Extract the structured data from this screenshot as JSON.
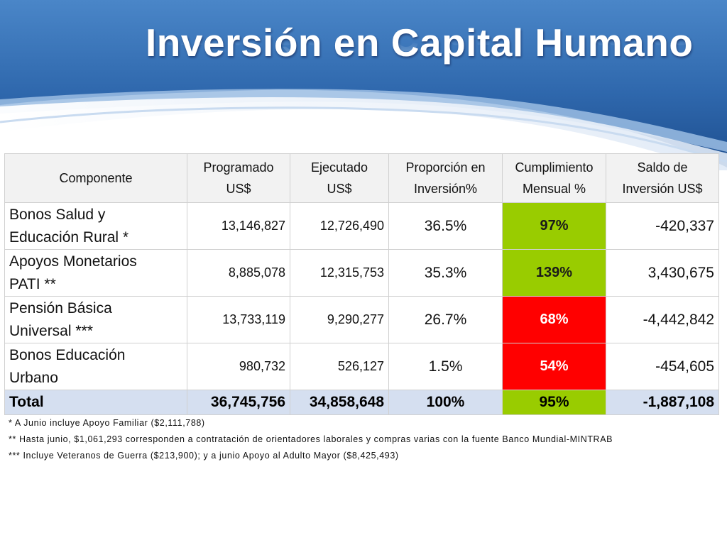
{
  "slide": {
    "title": "Inversión en Capital Humano"
  },
  "table": {
    "headers": {
      "componente": "Componente",
      "programado": [
        "Programado",
        "US$"
      ],
      "ejecutado": [
        "Ejecutado",
        "US$"
      ],
      "proporcion": [
        "Proporción en",
        "Inversión%"
      ],
      "cumplimiento": [
        "Cumplimiento",
        "Mensual %"
      ],
      "saldo": [
        "Saldo de",
        "Inversión US$"
      ]
    },
    "rows": [
      {
        "componente": [
          "Bonos Salud y",
          "Educación Rural *"
        ],
        "programado": "13,146,827",
        "ejecutado": "12,726,490",
        "proporcion": "36.5%",
        "cumplimiento": "97%",
        "saldo": "-420,337"
      },
      {
        "componente": [
          "Apoyos Monetarios",
          "PATI **"
        ],
        "programado": "8,885,078",
        "ejecutado": "12,315,753",
        "proporcion": "35.3%",
        "cumplimiento": "139%",
        "saldo": "3,430,675"
      },
      {
        "componente": [
          "Pensión Básica",
          "Universal ***"
        ],
        "programado": "13,733,119",
        "ejecutado": "9,290,277",
        "proporcion": "26.7%",
        "cumplimiento": "68%",
        "saldo": "-4,442,842"
      },
      {
        "componente": [
          "Bonos Educación",
          "Urbano"
        ],
        "programado": "980,732",
        "ejecutado": "526,127",
        "proporcion": "1.5%",
        "cumplimiento": "54%",
        "saldo": "-454,605"
      }
    ],
    "total": {
      "label": "Total",
      "programado": "36,745,756",
      "ejecutado": "34,858,648",
      "proporcion": "100%",
      "cumplimiento": "95%",
      "saldo": "-1,887,108"
    }
  },
  "notes": [
    "* A Junio incluye Apoyo Familiar ($2,111,788)",
    "** Hasta junio, $1,061,293 corresponden a contratación de orientadores laborales y compras varias con la fuente Banco Mundial-MINTRAB",
    "*** Incluye Veteranos de Guerra ($213,900); y a junio Apoyo al Adulto Mayor ($8,425,493)"
  ],
  "colors": {
    "banner_dark": "#1d4e8f",
    "banner_light": "#4a86c8",
    "status_good": "#99cc00",
    "status_bad": "#ff0000",
    "header_bg": "#f2f2f2",
    "total_bg": "#d5dff0"
  }
}
